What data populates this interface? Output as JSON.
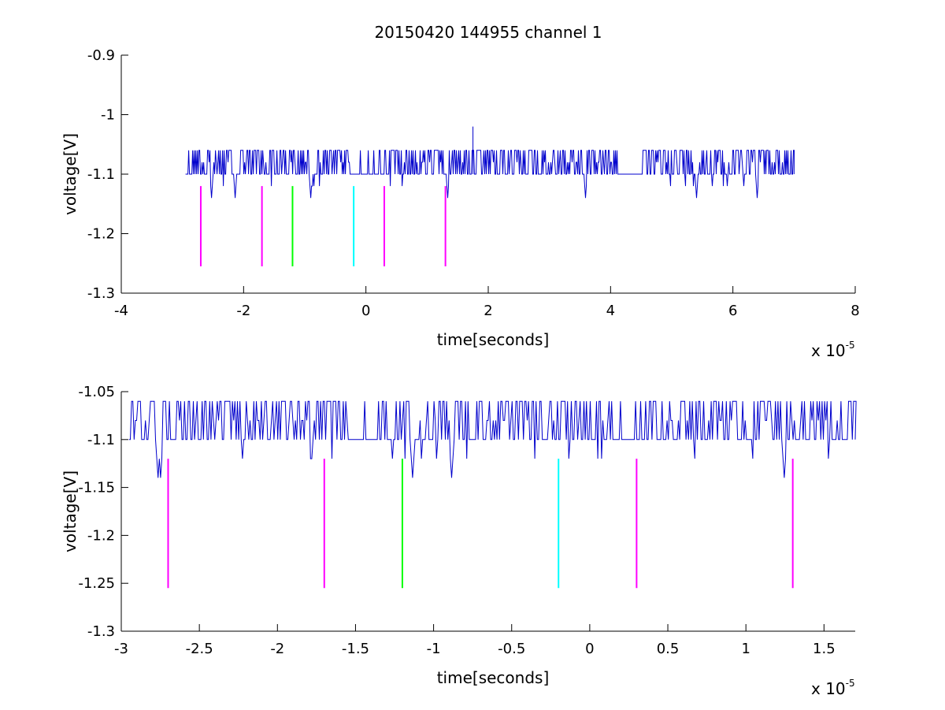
{
  "title": "20150420 144955 channel 1",
  "colors": {
    "signal": "#0000cc",
    "magenta": "#ff00ff",
    "green": "#00ff00",
    "cyan": "#00ffff",
    "axis": "#000000"
  },
  "chart_data": [
    {
      "type": "line",
      "title": "20150420 144955 channel 1",
      "xlabel": "time[seconds]",
      "ylabel": "voltage[V]",
      "x_exponent_base": "x 10",
      "x_exponent": "-5",
      "xlim": [
        -4e-05,
        8e-05
      ],
      "ylim": [
        -1.3,
        -0.9
      ],
      "xticks": [
        -4e-05,
        -2e-05,
        0,
        2e-05,
        4e-05,
        6e-05,
        8e-05
      ],
      "xtick_labels": [
        "-4",
        "-2",
        "0",
        "2",
        "4",
        "6",
        "8"
      ],
      "yticks": [
        -1.3,
        -1.2,
        -1.1,
        -1.0,
        -0.9
      ],
      "ytick_labels": [
        "-1.3",
        "-1.2",
        "-1.1",
        "-1",
        "-0.9"
      ],
      "grid": false,
      "series": [
        {
          "kind": "signal",
          "color": "#0000cc",
          "x_range": [
            -2.95e-05,
            7e-05
          ],
          "baseline": -1.1,
          "high": -1.06,
          "low": -1.14,
          "spike": {
            "x": 1.75e-05,
            "y": -1.02
          }
        }
      ],
      "markers": [
        {
          "x": -2.7e-05,
          "y_top": -1.12,
          "y_bottom": -1.255,
          "color": "#ff00ff"
        },
        {
          "x": -1.7e-05,
          "y_top": -1.12,
          "y_bottom": -1.255,
          "color": "#ff00ff"
        },
        {
          "x": -1.2e-05,
          "y_top": -1.12,
          "y_bottom": -1.255,
          "color": "#00ff00"
        },
        {
          "x": -2e-06,
          "y_top": -1.12,
          "y_bottom": -1.255,
          "color": "#00ffff"
        },
        {
          "x": 3e-06,
          "y_top": -1.12,
          "y_bottom": -1.255,
          "color": "#ff00ff"
        },
        {
          "x": 1.3e-05,
          "y_top": -1.12,
          "y_bottom": -1.255,
          "color": "#ff00ff"
        }
      ]
    },
    {
      "type": "line",
      "xlabel": "time[seconds]",
      "ylabel": "voltage[V]",
      "x_exponent_base": "x 10",
      "x_exponent": "-5",
      "xlim": [
        -3e-05,
        1.7e-05
      ],
      "ylim": [
        -1.3,
        -1.05
      ],
      "xticks": [
        -3e-05,
        -2.5e-05,
        -2e-05,
        -1.5e-05,
        -1e-05,
        -5e-06,
        0,
        5e-06,
        1e-05,
        1.5e-05
      ],
      "xtick_labels": [
        "-3",
        "-2.5",
        "-2",
        "-1.5",
        "-1",
        "-0.5",
        "0",
        "0.5",
        "1",
        "1.5"
      ],
      "yticks": [
        -1.3,
        -1.25,
        -1.2,
        -1.15,
        -1.1,
        -1.05
      ],
      "ytick_labels": [
        "-1.3",
        "-1.25",
        "-1.2",
        "-1.15",
        "-1.1",
        "-1.05"
      ],
      "grid": false,
      "series": [
        {
          "kind": "signal",
          "color": "#0000cc",
          "x_range": [
            -2.95e-05,
            1.7e-05
          ],
          "baseline": -1.1,
          "high": -1.06,
          "low": -1.14
        }
      ],
      "markers": [
        {
          "x": -2.7e-05,
          "y_top": -1.12,
          "y_bottom": -1.255,
          "color": "#ff00ff"
        },
        {
          "x": -1.7e-05,
          "y_top": -1.12,
          "y_bottom": -1.255,
          "color": "#ff00ff"
        },
        {
          "x": -1.2e-05,
          "y_top": -1.12,
          "y_bottom": -1.255,
          "color": "#00ff00"
        },
        {
          "x": -2e-06,
          "y_top": -1.12,
          "y_bottom": -1.255,
          "color": "#00ffff"
        },
        {
          "x": 3e-06,
          "y_top": -1.12,
          "y_bottom": -1.255,
          "color": "#ff00ff"
        },
        {
          "x": 1.3e-05,
          "y_top": -1.12,
          "y_bottom": -1.255,
          "color": "#ff00ff"
        }
      ]
    }
  ]
}
